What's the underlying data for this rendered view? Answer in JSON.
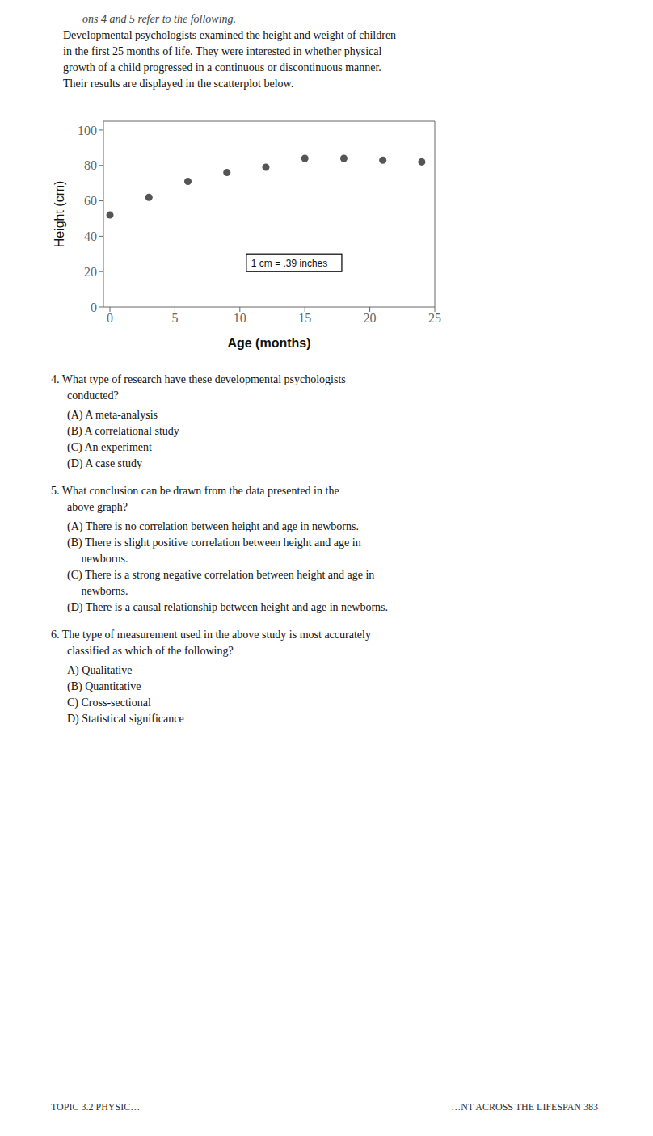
{
  "chart_data": {
    "type": "scatter",
    "x": [
      0,
      3,
      6,
      9,
      12,
      15,
      18,
      21,
      24
    ],
    "values": [
      52,
      62,
      71,
      76,
      79,
      84,
      84,
      83,
      82
    ],
    "color": "#555555",
    "xlabel": "Age (months)",
    "ylabel": "Height (cm)",
    "xlim": [
      -0.5,
      25
    ],
    "ylim": [
      0,
      105
    ],
    "xticks": [
      0,
      5,
      10,
      15,
      20,
      25
    ],
    "yticks": [
      0,
      20,
      40,
      60,
      80,
      100
    ],
    "annotations": [
      {
        "text": "1 cm = .39 inches",
        "x": 10.5,
        "y": 20
      }
    ]
  },
  "header_italic": "ons 4 and 5 refer to the following.",
  "header_lines": [
    "Developmental psychologists examined the height and weight of children",
    "in the first 25 months of life. They were interested in whether physical",
    "growth of a child progressed in a continuous or discontinuous manner.",
    "Their results are displayed in the scatterplot below."
  ],
  "questions": [
    {
      "lines": [
        "4. What type of research have these developmental psychologists",
        "conducted?"
      ],
      "options": [
        "(A) A meta-analysis",
        "(B) A correlational study",
        "(C) An experiment",
        "(D) A case study"
      ]
    },
    {
      "lines": [
        "5. What conclusion can be drawn from the data presented in the",
        "above graph?"
      ],
      "options": [
        "(A) There is no correlation between height and age in newborns.",
        "(B) There is slight positive correlation between height and age in",
        "     newborns.",
        "(C) There is a strong negative correlation between height and age in",
        "     newborns.",
        "(D) There is a causal relationship between height and age in newborns."
      ]
    },
    {
      "lines": [
        "6. The type of measurement used in the above study is most accurately",
        "classified as which of the following?"
      ],
      "options": [
        "A) Qualitative",
        "(B) Quantitative",
        "C) Cross-sectional",
        "D) Statistical significance"
      ]
    }
  ],
  "footer": [
    "TOPIC 3.2  PHYSIC…",
    "…NT ACROSS THE LIFESPAN  383"
  ]
}
